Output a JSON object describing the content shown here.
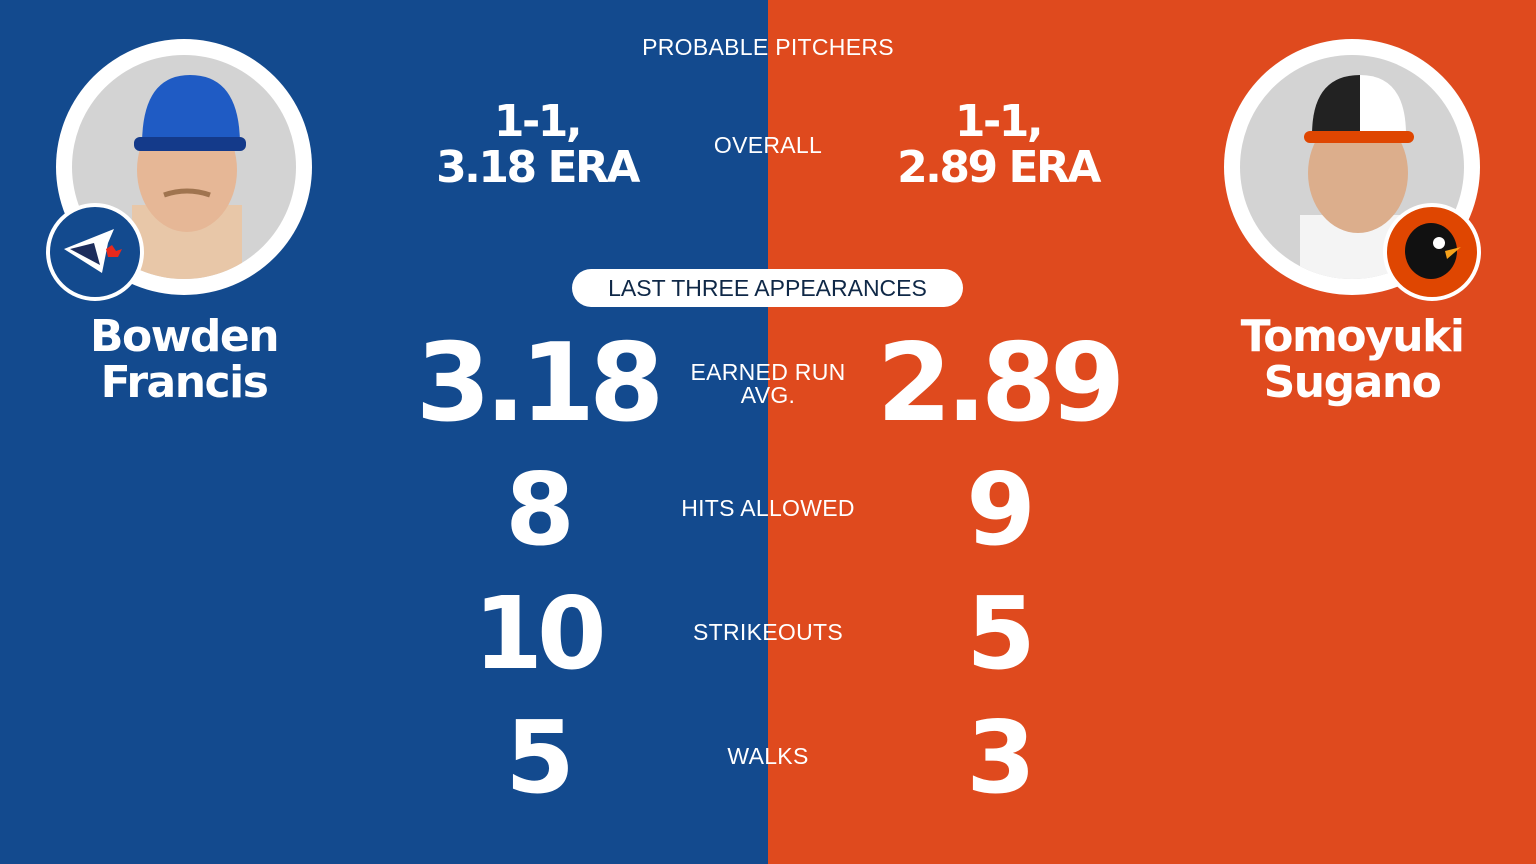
{
  "colors": {
    "home": "#134a8e",
    "away": "#df4a1e"
  },
  "header": {
    "title": "PROBABLE PITCHERS"
  },
  "labels": {
    "overall": "OVERALL",
    "last_three": "LAST THREE APPEARANCES",
    "era_line1": "EARNED RUN",
    "era_line2": "AVG.",
    "hits": "HITS ALLOWED",
    "strikeouts": "STRIKEOUTS",
    "walks": "WALKS"
  },
  "left": {
    "team_logo": "blue-jays-logo",
    "first_name": "Bowden",
    "last_name": "Francis",
    "overall_record": "1-1,",
    "overall_era": "3.18 ERA",
    "era": "3.18",
    "hits": "8",
    "strikeouts": "10",
    "walks": "5"
  },
  "right": {
    "team_logo": "orioles-logo",
    "first_name": "Tomoyuki",
    "last_name": "Sugano",
    "overall_record": "1-1,",
    "overall_era": "2.89 ERA",
    "era": "2.89",
    "hits": "9",
    "strikeouts": "5",
    "walks": "3"
  }
}
